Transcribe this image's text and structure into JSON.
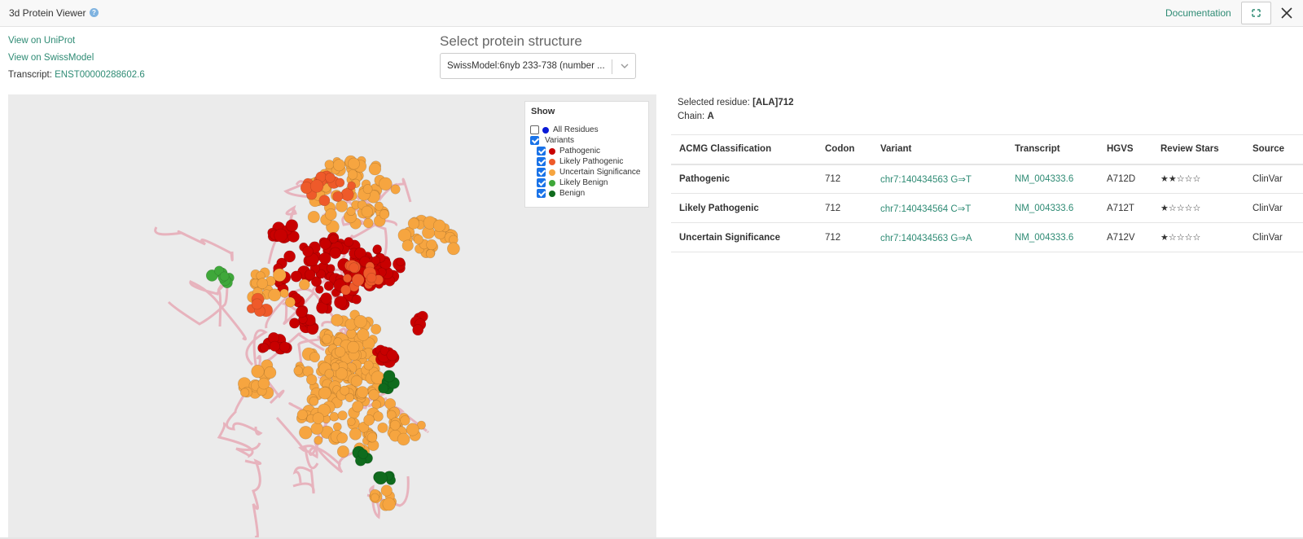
{
  "header": {
    "title": "3d Protein Viewer",
    "help_icon": "question-circle-icon",
    "documentation": "Documentation",
    "fullscreen_icon": "expand-icon",
    "close_icon": "close-icon"
  },
  "links": {
    "uniprot": "View on UniProt",
    "swissmodel": "View on SwissModel",
    "transcript_label": "Transcript:",
    "transcript_value": "ENST00000288602.6"
  },
  "structure": {
    "title": "Select protein structure",
    "selected": "SwissModel:6nyb 233-738 (number ..."
  },
  "legend": {
    "title": "Show",
    "items": [
      {
        "label": "All Residues",
        "checked": false,
        "color": "#0a1ad6"
      },
      {
        "label": "Variants",
        "checked": true,
        "color": ""
      },
      {
        "label": "Pathogenic",
        "checked": true,
        "color": "#c80000"
      },
      {
        "label": "Likely Pathogenic",
        "checked": true,
        "color": "#ee5a2a"
      },
      {
        "label": "Uncertain Significance",
        "checked": true,
        "color": "#f6a540"
      },
      {
        "label": "Likely Benign",
        "checked": true,
        "color": "#3fa83a"
      },
      {
        "label": "Benign",
        "checked": true,
        "color": "#0f6b1d"
      }
    ]
  },
  "selection": {
    "residue_label": "Selected residue:",
    "residue_value": "[ALA]712",
    "chain_label": "Chain:",
    "chain_value": "A"
  },
  "table": {
    "headers": [
      "ACMG Classification",
      "Codon",
      "Variant",
      "Transcript",
      "HGVS",
      "Review Stars",
      "Source"
    ],
    "rows": [
      {
        "classification": "Pathogenic",
        "codon": "712",
        "variant": "chr7:140434563 G⇒T",
        "transcript": "NM_004333.6",
        "hgvs": "A712D",
        "stars": "★★☆☆☆",
        "source": "ClinVar"
      },
      {
        "classification": "Likely Pathogenic",
        "codon": "712",
        "variant": "chr7:140434564 C⇒T",
        "transcript": "NM_004333.6",
        "hgvs": "A712T",
        "stars": "★☆☆☆☆",
        "source": "ClinVar"
      },
      {
        "classification": "Uncertain Significance",
        "codon": "712",
        "variant": "chr7:140434563 G⇒A",
        "transcript": "NM_004333.6",
        "hgvs": "A712V",
        "stars": "★☆☆☆☆",
        "source": "ClinVar"
      }
    ]
  },
  "colors": {
    "accent_link": "#2e8b74",
    "pathogenic": "#c80000",
    "likely_pathogenic": "#ee5a2a",
    "uncertain": "#f6a540",
    "likely_benign": "#3fa83a",
    "benign": "#0f6b1d"
  }
}
